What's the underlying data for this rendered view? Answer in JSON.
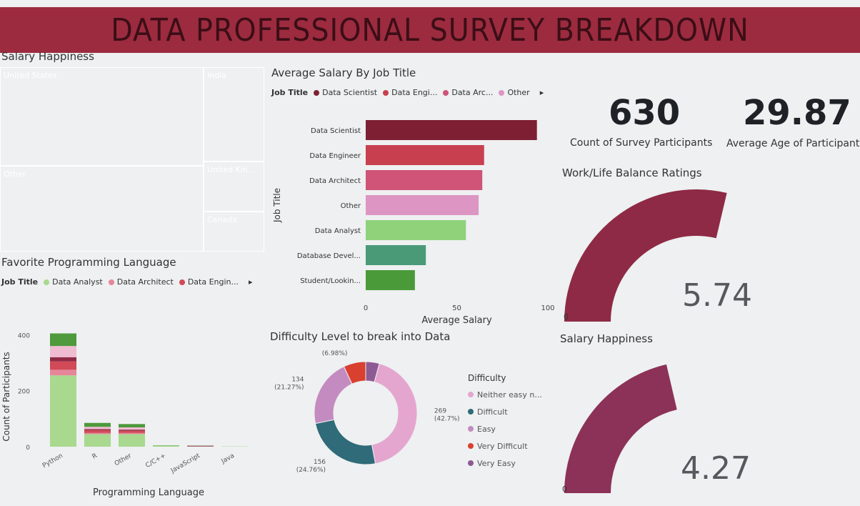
{
  "header": {
    "title": "DATA PROFESSIONAL SURVEY BREAKDOWN"
  },
  "treemap": {
    "title": "Salary Happiness",
    "cells": [
      {
        "label": "United States",
        "color": "#7e1f33"
      },
      {
        "label": "Other",
        "color": "#c8404f"
      },
      {
        "label": "India",
        "color": "#cf4f66"
      },
      {
        "label": "United Kin...",
        "color": "#e2a4bd"
      },
      {
        "label": "Canada",
        "color": "#7ec96a"
      }
    ]
  },
  "kpis": [
    {
      "value": "630",
      "label": "Count of Survey Participants"
    },
    {
      "value": "29.87",
      "label": "Average Age of Participant"
    }
  ],
  "salary_chart": {
    "legend_title": "Job Title",
    "legend_items": [
      "Data Scientist",
      "Data Engi...",
      "Data Arc...",
      "Other"
    ],
    "legend_more": "▸"
  },
  "language_chart": {
    "legend_title": "Job Title",
    "legend_items": [
      "Data Analyst",
      "Data Architect",
      "Data Engin..."
    ],
    "legend_more": "▸"
  },
  "donut": {
    "legend_title": "Difficulty"
  },
  "gauges": [
    {
      "title": "Work/Life Balance Ratings",
      "value": 5.74,
      "display": "5.74",
      "min_label": "0",
      "color": "#8e2a45"
    },
    {
      "title": "Salary Happiness",
      "value": 4.27,
      "display": "4.27",
      "min_label": "0",
      "color": "#8c3157"
    }
  ],
  "chart_data": [
    {
      "type": "bar",
      "orientation": "horizontal",
      "title": "Average Salary By Job Title",
      "xlabel": "Average Salary",
      "ylabel": "Job Title",
      "categories": [
        "Data Scientist",
        "Data Engineer",
        "Data Architect",
        "Other",
        "Data Analyst",
        "Database Devel...",
        "Student/Lookin..."
      ],
      "values": [
        94,
        65,
        64,
        62,
        55,
        33,
        27
      ],
      "colors": [
        "#7e1f33",
        "#c8404f",
        "#cf5478",
        "#dd96c3",
        "#8fd27a",
        "#4a9a78",
        "#4a9a3a"
      ],
      "xticks": [
        "0",
        "50",
        "100"
      ],
      "xlim": [
        0,
        100
      ]
    },
    {
      "type": "bar",
      "stacked": true,
      "title": "Favorite Programming Language",
      "xlabel": "Programming Language",
      "ylabel": "Count of Participants",
      "categories": [
        "Python",
        "R",
        "Other",
        "C/C++",
        "JavaScript",
        "Java"
      ],
      "series": [
        {
          "name": "Data Analyst",
          "values": [
            255,
            45,
            45,
            4,
            0,
            1
          ],
          "color": "#a8d98f"
        },
        {
          "name": "Data Architect",
          "values": [
            20,
            4,
            4,
            0,
            0,
            0
          ],
          "color": "#e6869a"
        },
        {
          "name": "Data Engin...",
          "values": [
            30,
            10,
            8,
            0,
            0,
            0
          ],
          "color": "#d24a58"
        },
        {
          "values": [
            15,
            4,
            4,
            0,
            2,
            0
          ],
          "color": "#8e2a45"
        },
        {
          "values": [
            40,
            8,
            8,
            0,
            2,
            0
          ],
          "color": "#efbcd2"
        },
        {
          "values": [
            45,
            14,
            12,
            1,
            1,
            0
          ],
          "color": "#4e9a3c"
        }
      ],
      "yticks": [
        "0",
        "200",
        "400"
      ],
      "ylim": [
        0,
        460
      ]
    },
    {
      "type": "pie",
      "donut": true,
      "title": "Difficulty Level to break into Data",
      "slices": [
        {
          "label": "Neither easy n...",
          "value": 269,
          "display": "269 (42.7%)",
          "color": "#e4a6cf"
        },
        {
          "label": "Difficult",
          "value": 156,
          "display": "156 (24.76%)",
          "color": "#2f6b78"
        },
        {
          "label": "Easy",
          "value": 134,
          "display": "134 (21.27%)",
          "color": "#c48bc0"
        },
        {
          "label": "Very Difficult",
          "value": 44,
          "display": "44 (6.98%)",
          "color": "#d9402f"
        },
        {
          "label": "Very Easy",
          "value": 27,
          "display": "",
          "color": "#8e5a93"
        }
      ]
    }
  ]
}
